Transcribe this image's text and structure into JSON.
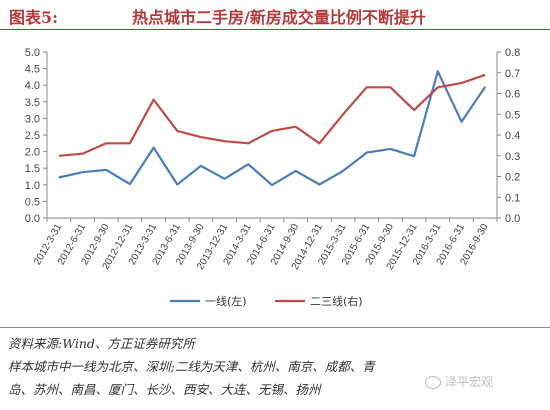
{
  "header": {
    "figure_label": "图表5:",
    "title": "热点城市二手房/新房成交量比例不断提升"
  },
  "chart_data": {
    "type": "line",
    "title": "热点城市二手房/新房成交量比例不断提升",
    "categories": [
      "2012-3-31",
      "2012-6-31",
      "2012-9-30",
      "2012-12-31",
      "2013-3-31",
      "2013-6-31",
      "2013-9-30",
      "2013-12-31",
      "2014-3-31",
      "2014-6-31",
      "2014-9-30",
      "2014-12-31",
      "2015-3-31",
      "2015-6-31",
      "2015-9-30",
      "2015-12-31",
      "2016-3-31",
      "2016-6-31",
      "2016-9-30"
    ],
    "left_axis": {
      "ylim": [
        0,
        5
      ],
      "ticks": [
        "0.0",
        "0.5",
        "1.0",
        "1.5",
        "2.0",
        "2.5",
        "3.0",
        "3.5",
        "4.0",
        "4.5",
        "5.0"
      ]
    },
    "right_axis": {
      "ylim": [
        0,
        0.8
      ],
      "ticks": [
        "0.0",
        "0.1",
        "0.2",
        "0.3",
        "0.4",
        "0.5",
        "0.6",
        "0.7",
        "0.8"
      ]
    },
    "grid": false,
    "legend_position": "bottom",
    "series": [
      {
        "name": "一线(左)",
        "axis": "left",
        "color": "#4a7ebb",
        "values": [
          1.22,
          1.38,
          1.45,
          1.02,
          2.12,
          1.01,
          1.57,
          1.18,
          1.62,
          0.99,
          1.42,
          1.01,
          1.42,
          1.97,
          2.08,
          1.86,
          4.42,
          2.9,
          3.95
        ]
      },
      {
        "name": "二三线(右)",
        "axis": "right",
        "color": "#be4b48",
        "values": [
          0.3,
          0.31,
          0.36,
          0.36,
          0.57,
          0.42,
          0.39,
          0.37,
          0.36,
          0.42,
          0.44,
          0.36,
          0.5,
          0.63,
          0.63,
          0.52,
          0.63,
          0.65,
          0.69
        ]
      }
    ]
  },
  "notes": {
    "source": "资料来源:Wind、方正证券研究所",
    "line2": "样本城市中一线为北京、深圳;二线为天津、杭州、南京、成都、青",
    "line3": "岛、苏州、南昌、厦门、长沙、西安、大连、无锡、扬州"
  },
  "watermark": {
    "text": "泽平宏观"
  }
}
